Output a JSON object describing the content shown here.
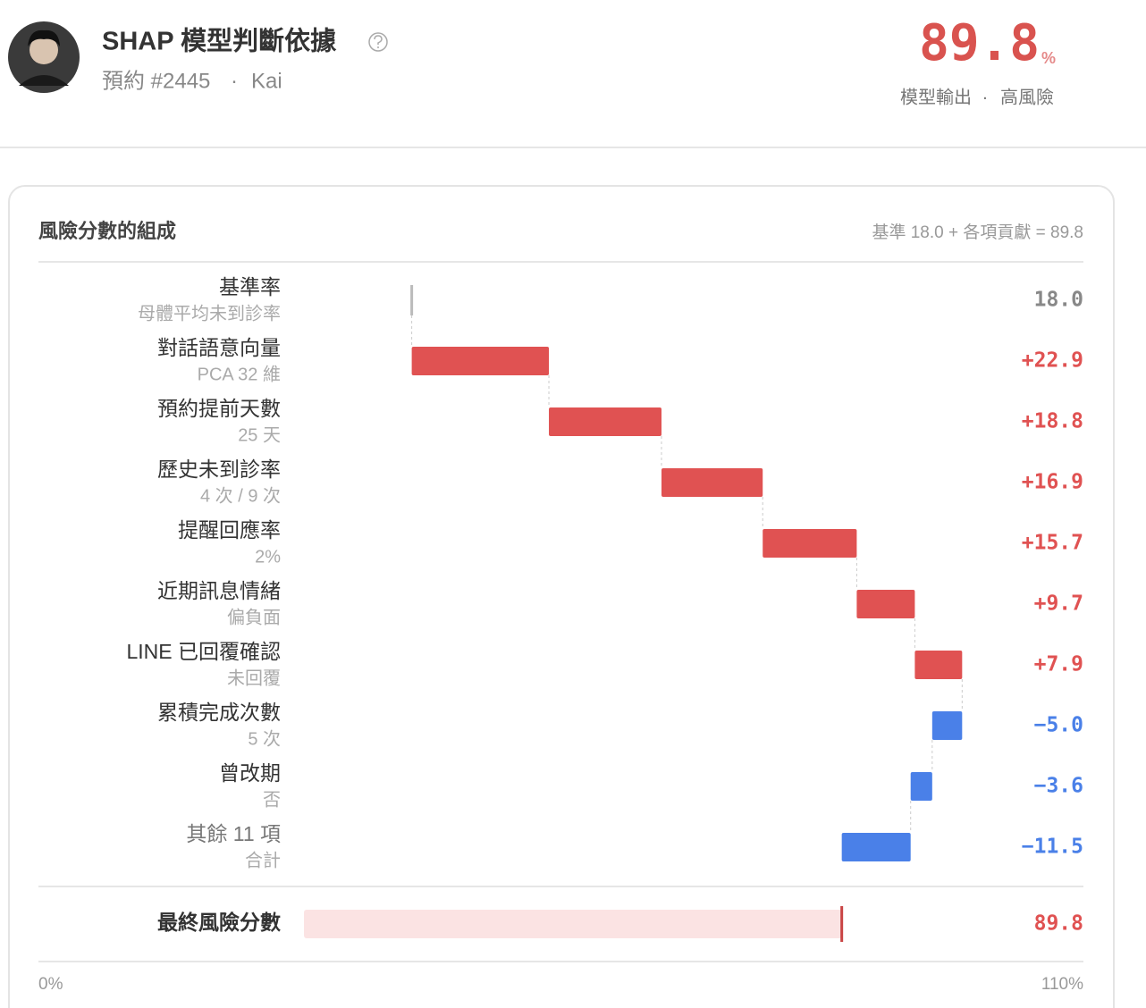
{
  "header": {
    "title": "SHAP 模型判斷依據",
    "booking": "預約 #2445",
    "separator": "·",
    "patient": "Kai",
    "score": 89.8,
    "score_unit": "%",
    "score_caption": "模型輸出",
    "risk_level": "高風險"
  },
  "card": {
    "title": "風險分數的組成",
    "formula_note": "基準 18.0 + 各項貢獻 = 89.8"
  },
  "chart_data": {
    "type": "waterfall",
    "categories": [
      "基準率",
      "對話語意向量",
      "預約提前天數",
      "歷史未到診率",
      "提醒回應率",
      "近期訊息情緒",
      "LINE 已回覆確認",
      "累積完成次數",
      "曾改期",
      "其餘 11 項"
    ],
    "sublabels": [
      "母體平均未到診率",
      "PCA 32 維",
      "25 天",
      "4 次 / 9 次",
      "2%",
      "偏負面",
      "未回覆",
      "5 次",
      "否",
      "合計"
    ],
    "values": [
      18.0,
      22.9,
      18.8,
      16.9,
      15.7,
      9.7,
      7.9,
      -5.0,
      -3.6,
      -11.5
    ],
    "value_labels": [
      "18.0",
      "+22.9",
      "+18.8",
      "+16.9",
      "+15.7",
      "+9.7",
      "+7.9",
      "−5.0",
      "−3.6",
      "−11.5"
    ],
    "total_label": "最終風險分數",
    "total": 89.8,
    "total_value_label": "89.8",
    "xlim": [
      0,
      110
    ],
    "xticks": [
      {
        "value": 0,
        "label": "0%"
      },
      {
        "value": 110,
        "label": "110%"
      }
    ],
    "colors": {
      "base": "#bbbbbb",
      "positive": "#e05252",
      "negative": "#4a80e8",
      "total": "#fbe3e3"
    }
  }
}
